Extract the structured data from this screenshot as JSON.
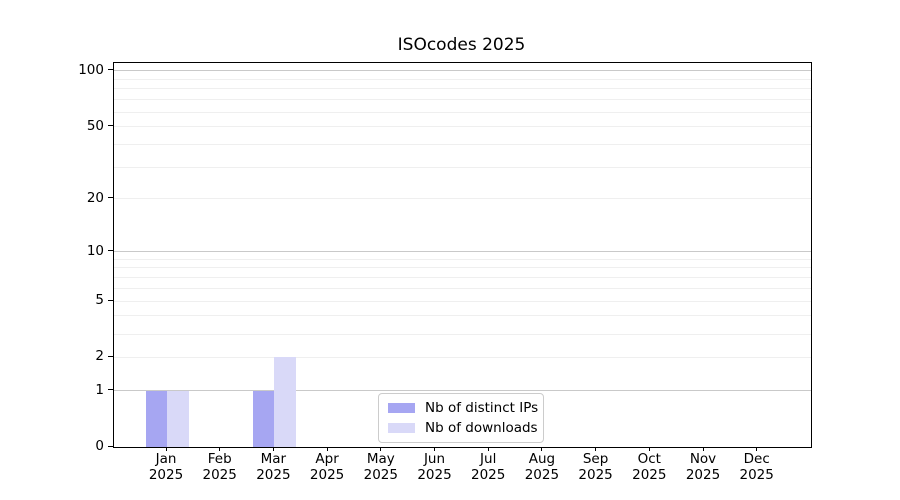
{
  "title": "ISOcodes 2025",
  "chart_data": {
    "type": "bar",
    "categories": [
      "Jan",
      "Feb",
      "Mar",
      "Apr",
      "May",
      "Jun",
      "Jul",
      "Aug",
      "Sep",
      "Oct",
      "Nov",
      "Dec"
    ],
    "year": "2025",
    "series": [
      {
        "name": "Nb of distinct IPs",
        "color": "#a6a6f2",
        "values": [
          1,
          0,
          1,
          0,
          0,
          0,
          0,
          0,
          0,
          0,
          0,
          0
        ]
      },
      {
        "name": "Nb of downloads",
        "color": "#d9d9f8",
        "values": [
          1,
          0,
          2,
          0,
          0,
          0,
          0,
          0,
          0,
          0,
          0,
          0
        ]
      }
    ],
    "y_axis": {
      "scale": "log10(1+x)",
      "tick_values": [
        0,
        1,
        2,
        5,
        10,
        20,
        50,
        100
      ],
      "tick_labels": [
        "0",
        "1",
        "2",
        "5",
        "10",
        "20",
        "50",
        "100"
      ],
      "major_gridlines": [
        1,
        10,
        100
      ],
      "minor_gridlines": [
        2,
        3,
        4,
        5,
        6,
        7,
        8,
        9,
        20,
        30,
        40,
        50,
        60,
        70,
        80,
        90
      ],
      "range": [
        0,
        120
      ]
    },
    "xlabel": "",
    "ylabel": "",
    "legend_position": "bottom-center",
    "grid": "horizontal-only"
  },
  "colors": {
    "background": "#ffffff",
    "spine": "#000000",
    "major_grid": "#c9c9c9",
    "minor_grid": "#efefef",
    "legend_border": "#cccccc"
  }
}
